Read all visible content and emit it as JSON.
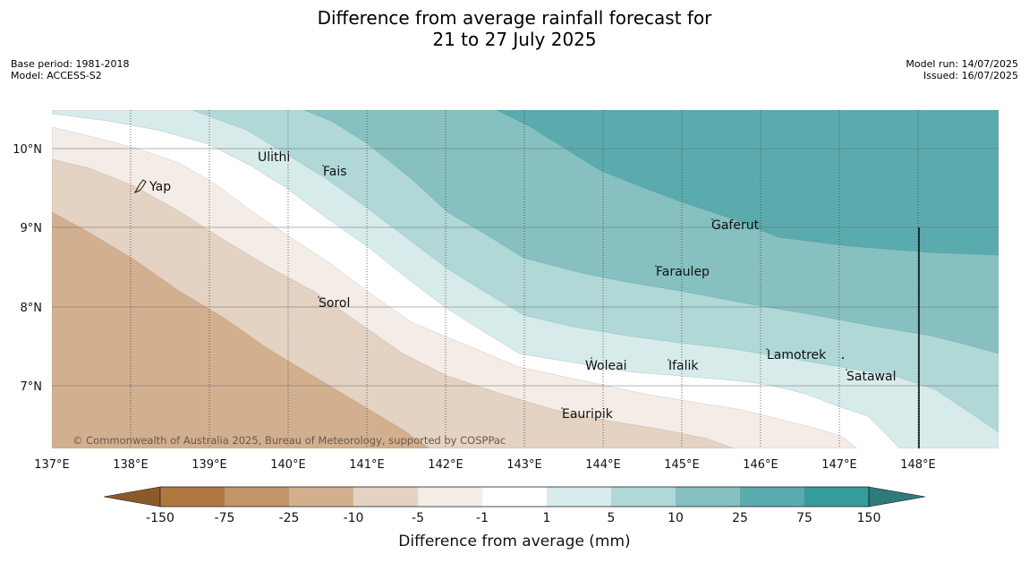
{
  "title": {
    "line1": "Difference from average rainfall forecast for",
    "line2": "21 to 27 July 2025"
  },
  "meta_left": {
    "base_period": "Base period: 1981-2018",
    "model": "Model: ACCESS-S2"
  },
  "meta_right": {
    "model_run": "Model run: 14/07/2025",
    "issued": "Issued: 16/07/2025"
  },
  "copyright": "© Commonwealth of Australia 2025, Bureau of Meteorology, supported by COSPPac",
  "map": {
    "lon_range": [
      137.0,
      149.0
    ],
    "lat_range": [
      6.2,
      10.5
    ],
    "x_ticks": [
      "137°E",
      "138°E",
      "139°E",
      "140°E",
      "141°E",
      "142°E",
      "143°E",
      "144°E",
      "145°E",
      "146°E",
      "147°E",
      "148°E"
    ],
    "y_ticks": [
      "7°N",
      "8°N",
      "9°N",
      "10°N"
    ],
    "places": [
      "Ulithi",
      "Fais",
      "Yap",
      "Gaferut",
      "Faraulep",
      "Sorol",
      "Woleai",
      "Ifalik",
      "Lamotrek",
      "Satawal",
      "Eauripik"
    ]
  },
  "legend": {
    "title": "Difference from average (mm)",
    "labels": [
      "-150",
      "-75",
      "-25",
      "-10",
      "-5",
      "-1",
      "1",
      "5",
      "10",
      "25",
      "75",
      "150"
    ],
    "colors": [
      "#8c5a2a",
      "#b07840",
      "#c29468",
      "#d2b08f",
      "#e4d2c2",
      "#f4ece6",
      "#ffffff",
      "#d7ebea",
      "#afd8d7",
      "#86c0c0",
      "#5aabad",
      "#369c9c",
      "#2f7a7a"
    ]
  }
}
